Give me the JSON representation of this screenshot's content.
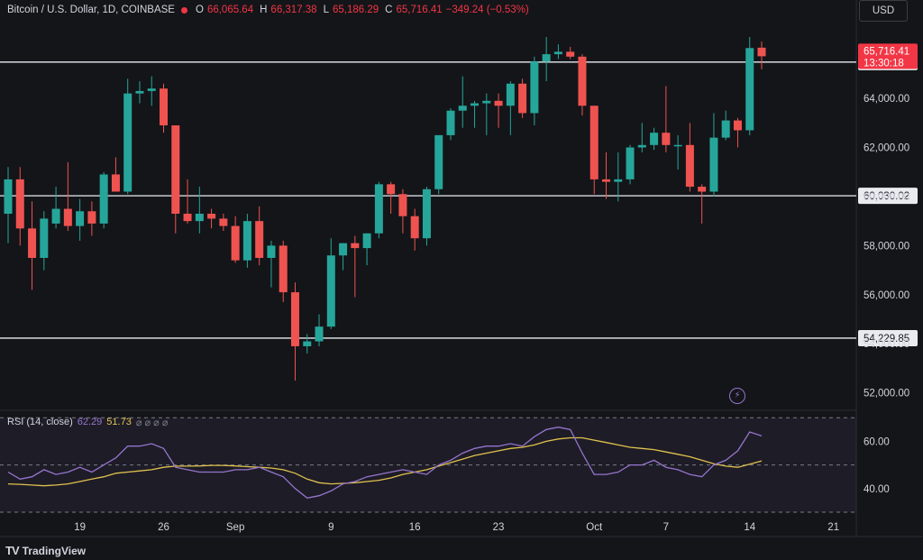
{
  "header": {
    "symbol": "Bitcoin / U.S. Dollar, 1D, COINBASE",
    "open_label": "O",
    "open": "66,065.64",
    "high_label": "H",
    "high": "66,317.38",
    "low_label": "L",
    "low": "65,186.29",
    "close_label": "C",
    "close": "65,716.41",
    "change": "−349.24 (−0.53%)"
  },
  "currency": "USD",
  "rsi_legend": {
    "label": "RSI (14, close)",
    "rsi": "62.29",
    "ma": "51.73",
    "icons": "⌀ ⌀ ⌀ ⌀"
  },
  "footer": {
    "brand": "TradingView",
    "logo": "TV"
  },
  "colors": {
    "up": "#26a69a",
    "down": "#ef5350",
    "rsi": "#9575cd",
    "rsi_ma": "#e0c24e",
    "bg": "#141519"
  },
  "chart_data": {
    "type": "candlestick",
    "price_axis": {
      "ticks": [
        52000,
        54000,
        56000,
        58000,
        60000,
        62000,
        64000,
        66000
      ],
      "tick_labels": [
        "52,000.00",
        "54,000.00",
        "56,000.00",
        "58,000.00",
        "60,000.00",
        "62,000.00",
        "64,000.00",
        "66,000.00"
      ],
      "ylim": [
        51400,
        67200
      ]
    },
    "horizontal_lines": [
      {
        "value": 65479.8,
        "label": "65,479.80"
      },
      {
        "value": 60030.02,
        "label": "60,030.02"
      },
      {
        "value": 54229.85,
        "label": "54,229.85"
      }
    ],
    "last_price": {
      "value": 65716.41,
      "label": "65,716.41",
      "countdown": "13:30:18"
    },
    "x_axis_labels": [
      {
        "text": "19",
        "index": 6
      },
      {
        "text": "26",
        "index": 13
      },
      {
        "text": "Sep",
        "index": 19
      },
      {
        "text": "9",
        "index": 27
      },
      {
        "text": "16",
        "index": 34
      },
      {
        "text": "23",
        "index": 41
      },
      {
        "text": "Oct",
        "index": 49
      },
      {
        "text": "7",
        "index": 55
      },
      {
        "text": "14",
        "index": 62
      },
      {
        "text": "21",
        "index": 69
      }
    ],
    "candles": [
      {
        "o": 59300,
        "h": 61200,
        "l": 58100,
        "c": 60700
      },
      {
        "o": 60700,
        "h": 61200,
        "l": 58000,
        "c": 58700
      },
      {
        "o": 58700,
        "h": 59800,
        "l": 56200,
        "c": 57500
      },
      {
        "o": 57500,
        "h": 59400,
        "l": 57000,
        "c": 59100
      },
      {
        "o": 58900,
        "h": 60400,
        "l": 58700,
        "c": 59500
      },
      {
        "o": 59500,
        "h": 61400,
        "l": 58600,
        "c": 58800
      },
      {
        "o": 58800,
        "h": 59900,
        "l": 58200,
        "c": 59400
      },
      {
        "o": 59400,
        "h": 59800,
        "l": 58400,
        "c": 58900
      },
      {
        "o": 58900,
        "h": 61000,
        "l": 58700,
        "c": 60900
      },
      {
        "o": 60900,
        "h": 61600,
        "l": 60200,
        "c": 60200
      },
      {
        "o": 60200,
        "h": 64800,
        "l": 60100,
        "c": 64200
      },
      {
        "o": 64200,
        "h": 64700,
        "l": 63800,
        "c": 64300
      },
      {
        "o": 64300,
        "h": 64900,
        "l": 63700,
        "c": 64400
      },
      {
        "o": 64400,
        "h": 64600,
        "l": 62600,
        "c": 62900
      },
      {
        "o": 62900,
        "h": 62900,
        "l": 58500,
        "c": 59300
      },
      {
        "o": 59300,
        "h": 60700,
        "l": 58900,
        "c": 59000
      },
      {
        "o": 59000,
        "h": 60400,
        "l": 58500,
        "c": 59300
      },
      {
        "o": 59300,
        "h": 59500,
        "l": 58700,
        "c": 59100
      },
      {
        "o": 59100,
        "h": 59300,
        "l": 58600,
        "c": 58800
      },
      {
        "o": 58800,
        "h": 59200,
        "l": 57300,
        "c": 57400
      },
      {
        "o": 57400,
        "h": 59300,
        "l": 57100,
        "c": 59000
      },
      {
        "o": 59000,
        "h": 59600,
        "l": 57200,
        "c": 57500
      },
      {
        "o": 57500,
        "h": 58200,
        "l": 56300,
        "c": 58000
      },
      {
        "o": 58000,
        "h": 58200,
        "l": 55700,
        "c": 56100
      },
      {
        "o": 56100,
        "h": 56500,
        "l": 52500,
        "c": 53900
      },
      {
        "o": 53900,
        "h": 54400,
        "l": 53600,
        "c": 54100
      },
      {
        "o": 54100,
        "h": 55200,
        "l": 53900,
        "c": 54700
      },
      {
        "o": 54700,
        "h": 58300,
        "l": 54600,
        "c": 57600
      },
      {
        "o": 57600,
        "h": 58100,
        "l": 57000,
        "c": 58100
      },
      {
        "o": 58100,
        "h": 58400,
        "l": 55900,
        "c": 57900
      },
      {
        "o": 57900,
        "h": 58500,
        "l": 57200,
        "c": 58500
      },
      {
        "o": 58500,
        "h": 60600,
        "l": 58300,
        "c": 60500
      },
      {
        "o": 60500,
        "h": 60600,
        "l": 59300,
        "c": 60100
      },
      {
        "o": 60100,
        "h": 60300,
        "l": 58500,
        "c": 59200
      },
      {
        "o": 59200,
        "h": 59500,
        "l": 57800,
        "c": 58300
      },
      {
        "o": 58300,
        "h": 60400,
        "l": 58000,
        "c": 60300
      },
      {
        "o": 60300,
        "h": 62500,
        "l": 60100,
        "c": 62500
      },
      {
        "o": 62500,
        "h": 63600,
        "l": 62300,
        "c": 63500
      },
      {
        "o": 63500,
        "h": 64900,
        "l": 62800,
        "c": 63700
      },
      {
        "o": 63700,
        "h": 63900,
        "l": 62800,
        "c": 63800
      },
      {
        "o": 63800,
        "h": 64200,
        "l": 62500,
        "c": 63900
      },
      {
        "o": 63900,
        "h": 64200,
        "l": 62800,
        "c": 63700
      },
      {
        "o": 63700,
        "h": 64700,
        "l": 62500,
        "c": 64600
      },
      {
        "o": 64600,
        "h": 64800,
        "l": 63200,
        "c": 63400
      },
      {
        "o": 63400,
        "h": 65700,
        "l": 62900,
        "c": 65500
      },
      {
        "o": 65500,
        "h": 66500,
        "l": 64700,
        "c": 65800
      },
      {
        "o": 65800,
        "h": 66200,
        "l": 65600,
        "c": 65900
      },
      {
        "o": 65900,
        "h": 66100,
        "l": 65600,
        "c": 65700
      },
      {
        "o": 65700,
        "h": 65800,
        "l": 63300,
        "c": 63700
      },
      {
        "o": 63700,
        "h": 63700,
        "l": 60100,
        "c": 60700
      },
      {
        "o": 60700,
        "h": 61800,
        "l": 59900,
        "c": 60600
      },
      {
        "o": 60600,
        "h": 61800,
        "l": 59800,
        "c": 60700
      },
      {
        "o": 60700,
        "h": 62100,
        "l": 60500,
        "c": 62000
      },
      {
        "o": 62000,
        "h": 63000,
        "l": 61800,
        "c": 62100
      },
      {
        "o": 62100,
        "h": 62800,
        "l": 61900,
        "c": 62600
      },
      {
        "o": 62600,
        "h": 64500,
        "l": 61800,
        "c": 62100
      },
      {
        "o": 62100,
        "h": 62500,
        "l": 61100,
        "c": 62100
      },
      {
        "o": 62100,
        "h": 63000,
        "l": 60200,
        "c": 60400
      },
      {
        "o": 60400,
        "h": 60500,
        "l": 58900,
        "c": 60200
      },
      {
        "o": 60200,
        "h": 63400,
        "l": 60000,
        "c": 62400
      },
      {
        "o": 62400,
        "h": 63500,
        "l": 62300,
        "c": 63100
      },
      {
        "o": 63100,
        "h": 63200,
        "l": 62000,
        "c": 62700
      },
      {
        "o": 62700,
        "h": 66500,
        "l": 62500,
        "c": 66050
      },
      {
        "o": 66065.64,
        "h": 66317.38,
        "l": 65186.29,
        "c": 65716.41
      }
    ],
    "rsi": {
      "ylim": [
        30,
        72
      ],
      "levels": [
        70,
        50,
        30
      ],
      "tick_labels": [
        {
          "value": 60,
          "text": "60.00"
        },
        {
          "value": 40,
          "text": "40.00"
        }
      ],
      "rsi_values": [
        47,
        44,
        45,
        48,
        46,
        47,
        49,
        47,
        50,
        53,
        58,
        58,
        59,
        57,
        49,
        48,
        47,
        47,
        47,
        48,
        48,
        49,
        47,
        45,
        40,
        36,
        37,
        39,
        42,
        43,
        45,
        46,
        47,
        48,
        47,
        46,
        50,
        52,
        55,
        57,
        58,
        58,
        59,
        58,
        62,
        65,
        66,
        65,
        55,
        46,
        46,
        47,
        50,
        50,
        52,
        49,
        48,
        46,
        45,
        50,
        52,
        56,
        64,
        62.29
      ],
      "ma_values": [
        42,
        41.8,
        41.5,
        41.2,
        41.5,
        42,
        43,
        44,
        45,
        46.5,
        47,
        47.5,
        48,
        49,
        49.5,
        49.5,
        49.6,
        49.8,
        49.8,
        49.6,
        49.3,
        49,
        48.7,
        48,
        46.5,
        44,
        42.5,
        42,
        42.2,
        42.5,
        43,
        43.5,
        44.5,
        46,
        47,
        48,
        49.5,
        51,
        52.5,
        54,
        55,
        56,
        57,
        57.5,
        58.5,
        60,
        61,
        61.5,
        61.5,
        60.5,
        59.5,
        58.5,
        57.5,
        57,
        56.5,
        55.5,
        54.5,
        53.5,
        52,
        50.5,
        49.5,
        49,
        50.3,
        51.73
      ]
    }
  }
}
